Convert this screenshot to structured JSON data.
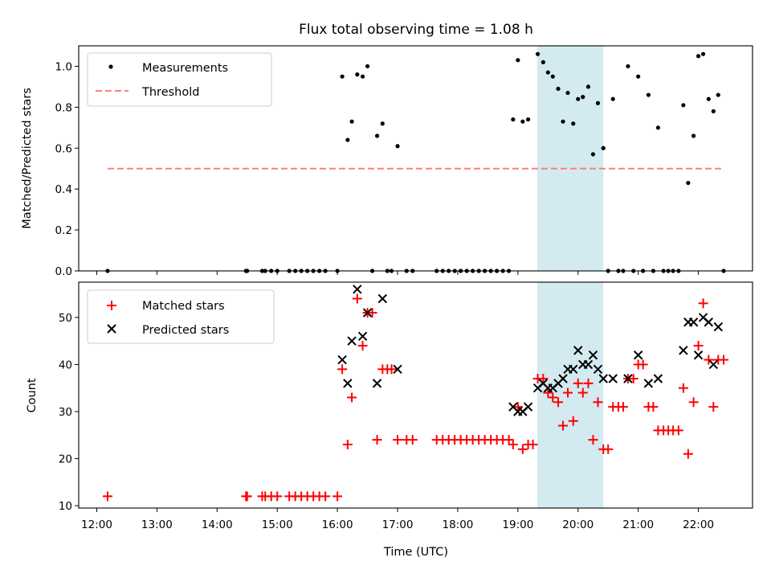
{
  "chart_data": [
    {
      "type": "scatter",
      "title": "Flux total observing time = 1.08 h",
      "ylabel": "Matched/Predicted stars",
      "ylim": [
        0,
        1.1
      ],
      "yticks": [
        "0.0",
        "0.2",
        "0.4",
        "0.6",
        "0.8",
        "1.0"
      ],
      "xlim": [
        11.7,
        22.9
      ],
      "legend_location": "top-left",
      "highlight_span": {
        "start": 19.32,
        "end": 20.42,
        "color": "#d3eaf0"
      },
      "series": [
        {
          "name": "Measurements",
          "style": "dot",
          "color": "#000000",
          "points": [
            [
              12.18,
              0
            ],
            [
              14.48,
              0
            ],
            [
              14.5,
              0
            ],
            [
              14.75,
              0
            ],
            [
              14.8,
              0
            ],
            [
              14.9,
              0
            ],
            [
              15.0,
              0
            ],
            [
              15.2,
              0
            ],
            [
              15.3,
              0
            ],
            [
              15.4,
              0
            ],
            [
              15.5,
              0
            ],
            [
              15.6,
              0
            ],
            [
              15.7,
              0
            ],
            [
              15.8,
              0
            ],
            [
              16.0,
              0
            ],
            [
              16.08,
              0.95
            ],
            [
              16.17,
              0.64
            ],
            [
              16.24,
              0.73
            ],
            [
              16.33,
              0.96
            ],
            [
              16.42,
              0.95
            ],
            [
              16.5,
              1.0
            ],
            [
              16.58,
              0
            ],
            [
              16.66,
              0.66
            ],
            [
              16.75,
              0.72
            ],
            [
              16.83,
              0
            ],
            [
              16.9,
              0
            ],
            [
              17.0,
              0.61
            ],
            [
              17.15,
              0
            ],
            [
              17.25,
              0
            ],
            [
              17.65,
              0
            ],
            [
              17.75,
              0
            ],
            [
              17.85,
              0
            ],
            [
              17.95,
              0
            ],
            [
              18.05,
              0
            ],
            [
              18.15,
              0
            ],
            [
              18.25,
              0
            ],
            [
              18.35,
              0
            ],
            [
              18.45,
              0
            ],
            [
              18.55,
              0
            ],
            [
              18.65,
              0
            ],
            [
              18.75,
              0
            ],
            [
              18.85,
              0
            ],
            [
              18.92,
              0.74
            ],
            [
              19.0,
              1.03
            ],
            [
              19.08,
              0.73
            ],
            [
              19.17,
              0.74
            ],
            [
              19.33,
              1.06
            ],
            [
              19.42,
              1.02
            ],
            [
              19.5,
              0.97
            ],
            [
              19.58,
              0.95
            ],
            [
              19.67,
              0.89
            ],
            [
              19.75,
              0.73
            ],
            [
              19.83,
              0.87
            ],
            [
              19.92,
              0.72
            ],
            [
              20.0,
              0.84
            ],
            [
              20.08,
              0.85
            ],
            [
              20.17,
              0.9
            ],
            [
              20.25,
              0.57
            ],
            [
              20.33,
              0.82
            ],
            [
              20.42,
              0.6
            ],
            [
              20.5,
              0
            ],
            [
              20.58,
              0.84
            ],
            [
              20.67,
              0
            ],
            [
              20.75,
              0
            ],
            [
              20.83,
              1.0
            ],
            [
              20.92,
              0
            ],
            [
              21.0,
              0.95
            ],
            [
              21.08,
              0
            ],
            [
              21.17,
              0.86
            ],
            [
              21.25,
              0
            ],
            [
              21.33,
              0.7
            ],
            [
              21.42,
              0
            ],
            [
              21.5,
              0
            ],
            [
              21.58,
              0
            ],
            [
              21.67,
              0
            ],
            [
              21.75,
              0.81
            ],
            [
              21.83,
              0.43
            ],
            [
              21.92,
              0.66
            ],
            [
              22.0,
              1.05
            ],
            [
              22.08,
              1.06
            ],
            [
              22.17,
              0.84
            ],
            [
              22.25,
              0.78
            ],
            [
              22.33,
              0.86
            ],
            [
              22.42,
              0
            ]
          ]
        },
        {
          "name": "Threshold",
          "style": "dashed-line",
          "color": "#ff7f7f",
          "points": [
            [
              12.18,
              0.5
            ],
            [
              22.42,
              0.5
            ]
          ]
        }
      ]
    },
    {
      "type": "scatter",
      "title": "",
      "xlabel": "Time (UTC)",
      "ylabel": "Count",
      "ylim": [
        9.5,
        57.5
      ],
      "yticks": [
        "10",
        "20",
        "30",
        "40",
        "50"
      ],
      "xlim": [
        11.7,
        22.9
      ],
      "xticks": [
        "12:00",
        "13:00",
        "14:00",
        "15:00",
        "16:00",
        "17:00",
        "18:00",
        "19:00",
        "20:00",
        "21:00",
        "22:00"
      ],
      "legend_location": "top-left",
      "highlight_span": {
        "start": 19.32,
        "end": 20.42,
        "color": "#d3eaf0"
      },
      "series": [
        {
          "name": "Matched stars",
          "style": "plus",
          "color": "#ff0000",
          "points": [
            [
              12.18,
              12
            ],
            [
              14.48,
              12
            ],
            [
              14.5,
              12
            ],
            [
              14.75,
              12
            ],
            [
              14.8,
              12
            ],
            [
              14.9,
              12
            ],
            [
              15.0,
              12
            ],
            [
              15.2,
              12
            ],
            [
              15.3,
              12
            ],
            [
              15.4,
              12
            ],
            [
              15.5,
              12
            ],
            [
              15.6,
              12
            ],
            [
              15.7,
              12
            ],
            [
              15.8,
              12
            ],
            [
              16.0,
              12
            ],
            [
              16.08,
              39
            ],
            [
              16.17,
              23
            ],
            [
              16.24,
              33
            ],
            [
              16.33,
              54
            ],
            [
              16.42,
              44
            ],
            [
              16.5,
              51
            ],
            [
              16.58,
              51
            ],
            [
              16.66,
              24
            ],
            [
              16.75,
              39
            ],
            [
              16.83,
              39
            ],
            [
              16.9,
              39
            ],
            [
              17.0,
              24
            ],
            [
              17.15,
              24
            ],
            [
              17.25,
              24
            ],
            [
              17.65,
              24
            ],
            [
              17.75,
              24
            ],
            [
              17.85,
              24
            ],
            [
              17.95,
              24
            ],
            [
              18.05,
              24
            ],
            [
              18.15,
              24
            ],
            [
              18.25,
              24
            ],
            [
              18.35,
              24
            ],
            [
              18.45,
              24
            ],
            [
              18.55,
              24
            ],
            [
              18.65,
              24
            ],
            [
              18.75,
              24
            ],
            [
              18.85,
              24
            ],
            [
              18.92,
              23
            ],
            [
              19.0,
              31
            ],
            [
              19.08,
              22
            ],
            [
              19.17,
              23
            ],
            [
              19.25,
              23
            ],
            [
              19.33,
              37
            ],
            [
              19.42,
              37
            ],
            [
              19.5,
              34
            ],
            [
              19.58,
              33
            ],
            [
              19.67,
              32
            ],
            [
              19.75,
              27
            ],
            [
              19.83,
              34
            ],
            [
              19.92,
              28
            ],
            [
              20.0,
              36
            ],
            [
              20.08,
              34
            ],
            [
              20.17,
              36
            ],
            [
              20.25,
              24
            ],
            [
              20.33,
              32
            ],
            [
              20.42,
              22
            ],
            [
              20.5,
              22
            ],
            [
              20.58,
              31
            ],
            [
              20.67,
              31
            ],
            [
              20.75,
              31
            ],
            [
              20.83,
              37
            ],
            [
              20.92,
              37
            ],
            [
              21.0,
              40
            ],
            [
              21.08,
              40
            ],
            [
              21.17,
              31
            ],
            [
              21.25,
              31
            ],
            [
              21.33,
              26
            ],
            [
              21.42,
              26
            ],
            [
              21.5,
              26
            ],
            [
              21.58,
              26
            ],
            [
              21.67,
              26
            ],
            [
              21.75,
              35
            ],
            [
              21.83,
              21
            ],
            [
              21.92,
              32
            ],
            [
              22.0,
              44
            ],
            [
              22.08,
              53
            ],
            [
              22.17,
              41
            ],
            [
              22.25,
              31
            ],
            [
              22.33,
              41
            ],
            [
              22.42,
              41
            ]
          ]
        },
        {
          "name": "Predicted stars",
          "style": "cross",
          "color": "#000000",
          "points": [
            [
              16.08,
              41
            ],
            [
              16.17,
              36
            ],
            [
              16.24,
              45
            ],
            [
              16.33,
              56
            ],
            [
              16.42,
              46
            ],
            [
              16.5,
              51
            ],
            [
              16.66,
              36
            ],
            [
              16.75,
              54
            ],
            [
              17.0,
              39
            ],
            [
              18.92,
              31
            ],
            [
              19.0,
              30
            ],
            [
              19.08,
              30
            ],
            [
              19.17,
              31
            ],
            [
              19.33,
              35
            ],
            [
              19.42,
              36
            ],
            [
              19.5,
              35
            ],
            [
              19.58,
              35
            ],
            [
              19.67,
              36
            ],
            [
              19.75,
              37
            ],
            [
              19.83,
              39
            ],
            [
              19.92,
              39
            ],
            [
              20.0,
              43
            ],
            [
              20.08,
              40
            ],
            [
              20.17,
              40
            ],
            [
              20.25,
              42
            ],
            [
              20.33,
              39
            ],
            [
              20.42,
              37
            ],
            [
              20.58,
              37
            ],
            [
              20.83,
              37
            ],
            [
              21.0,
              42
            ],
            [
              21.17,
              36
            ],
            [
              21.33,
              37
            ],
            [
              21.75,
              43
            ],
            [
              21.83,
              49
            ],
            [
              21.92,
              49
            ],
            [
              22.0,
              42
            ],
            [
              22.08,
              50
            ],
            [
              22.17,
              49
            ],
            [
              22.25,
              40
            ],
            [
              22.33,
              48
            ]
          ]
        }
      ]
    }
  ]
}
